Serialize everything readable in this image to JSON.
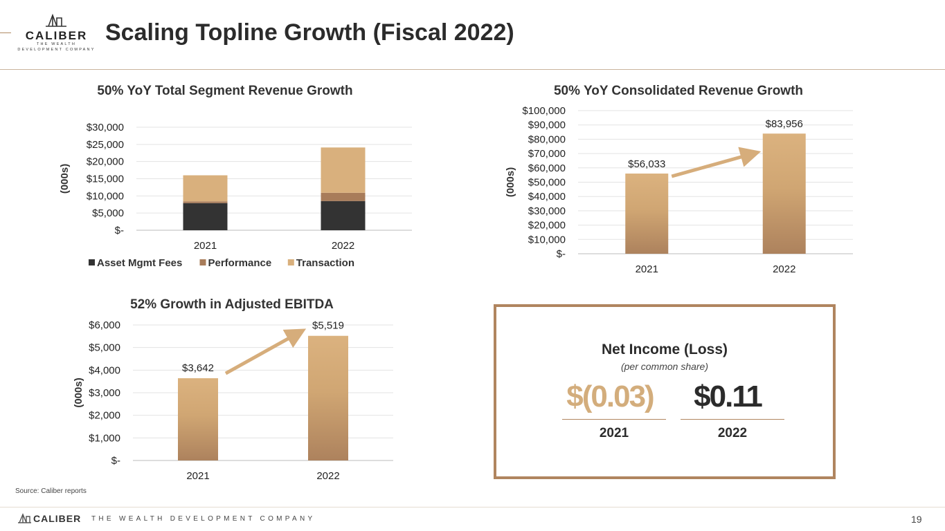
{
  "header": {
    "title": "Scaling Topline Growth (Fiscal 2022)",
    "logo_word": "CALIBER",
    "logo_tagline": "THE WEALTH DEVELOPMENT COMPANY"
  },
  "colors": {
    "accent": "#b0855f",
    "dark_bar": "#333333",
    "performance": "#a87c5a",
    "transaction": "#d9b07d"
  },
  "chart_data": [
    {
      "id": "segment-revenue",
      "type": "bar",
      "stacked": true,
      "title": "50% YoY Total Segment Revenue Growth",
      "ylabel": "(000s)",
      "categories": [
        "2021",
        "2022"
      ],
      "series": [
        {
          "name": "Asset Mgmt Fees",
          "values": [
            7900,
            8500
          ]
        },
        {
          "name": "Performance",
          "values": [
            500,
            2400
          ]
        },
        {
          "name": "Transaction",
          "values": [
            7600,
            13200
          ]
        }
      ],
      "ylim": [
        0,
        30000
      ],
      "yticks": [
        "$-",
        "$5,000",
        "$10,000",
        "$15,000",
        "$20,000",
        "$25,000",
        "$30,000"
      ],
      "legend": "bottom",
      "grid": true
    },
    {
      "id": "consolidated-revenue",
      "type": "bar",
      "title": "50% YoY Consolidated Revenue Growth",
      "ylabel": "(000s)",
      "categories": [
        "2021",
        "2022"
      ],
      "values": [
        56033,
        83956
      ],
      "data_labels": [
        "$56,033",
        "$83,956"
      ],
      "ylim": [
        0,
        100000
      ],
      "yticks": [
        "$-",
        "$10,000",
        "$20,000",
        "$30,000",
        "$40,000",
        "$50,000",
        "$60,000",
        "$70,000",
        "$80,000",
        "$90,000",
        "$100,000"
      ],
      "grid": true
    },
    {
      "id": "adjusted-ebitda",
      "type": "bar",
      "title": "52% Growth in Adjusted EBITDA",
      "ylabel": "(000s)",
      "categories": [
        "2021",
        "2022"
      ],
      "values": [
        3642,
        5519
      ],
      "data_labels": [
        "$3,642",
        "$5,519"
      ],
      "ylim": [
        0,
        6000
      ],
      "yticks": [
        "$-",
        "$1,000",
        "$2,000",
        "$3,000",
        "$4,000",
        "$5,000",
        "$6,000"
      ],
      "grid": true
    }
  ],
  "net_income": {
    "title": "Net Income (Loss)",
    "subtitle": "(per common share)",
    "values": [
      {
        "year": "2021",
        "value": "$(0.03)"
      },
      {
        "year": "2022",
        "value": "$0.11"
      }
    ]
  },
  "footer": {
    "source": "Source: Caliber reports",
    "brand": "CALIBER",
    "tagline": "THE WEALTH DEVELOPMENT COMPANY",
    "page_number": "19"
  }
}
